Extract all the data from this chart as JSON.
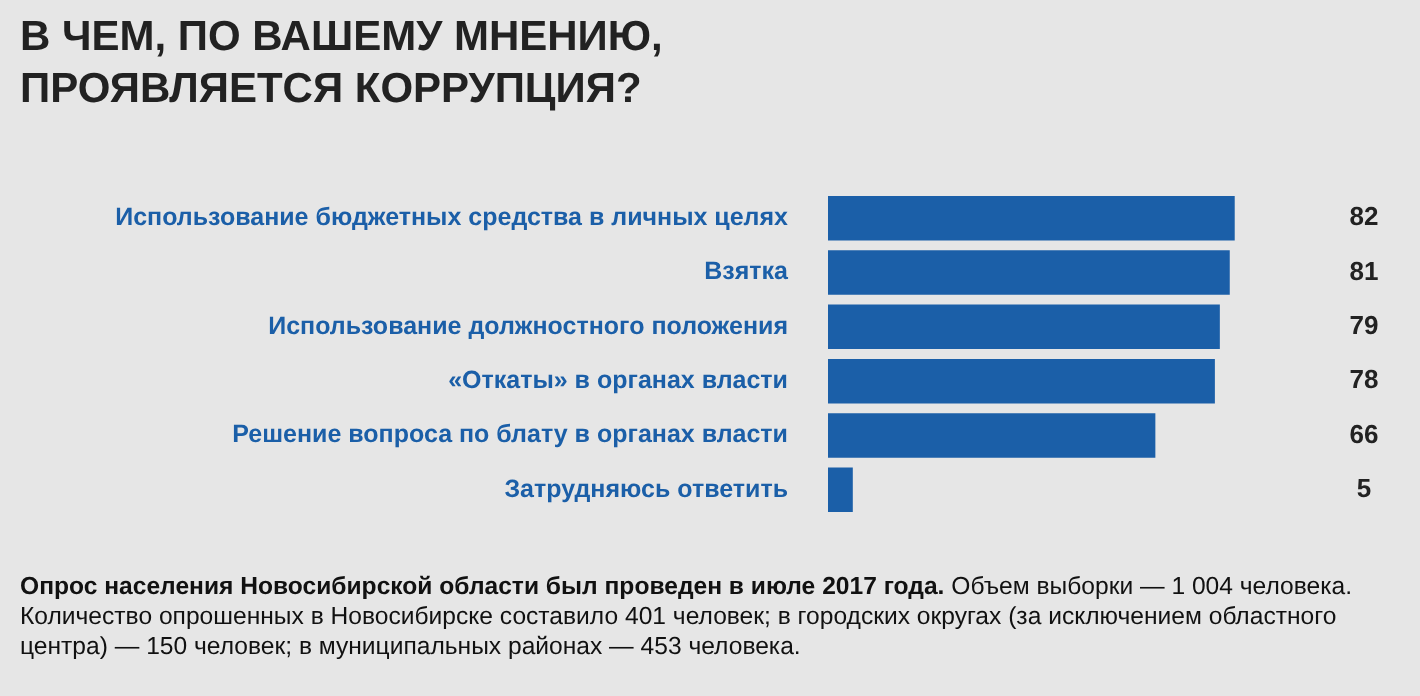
{
  "chart_data": {
    "type": "bar",
    "orientation": "horizontal",
    "title": "В ЧЕМ, ПО ВАШЕМУ МНЕНИЮ,\nПРОЯВЛЯЕТСЯ КОРРУПЦИЯ?",
    "categories": [
      "Использование бюджетных средства в личных целях",
      "Взятка",
      "Использование должностного положения",
      "«Откаты» в органах власти",
      "Решение вопроса по блату в органах власти",
      "Затрудняюсь ответить"
    ],
    "values": [
      82,
      81,
      79,
      78,
      66,
      5
    ],
    "color": "#1b5fa8",
    "data_labels": true,
    "legend": false,
    "tick_labels": "y",
    "annotations": [
      "Опрос населения Новосибирской области был проведен в июле 2017 года.",
      "Объем выборки — 1 004 человека. Количество опрошенных в Новосибирске составило 401 человек; в городских округах (за исключением областного центра) — 150 человек; в муниципальных районах — 453 человека."
    ]
  }
}
